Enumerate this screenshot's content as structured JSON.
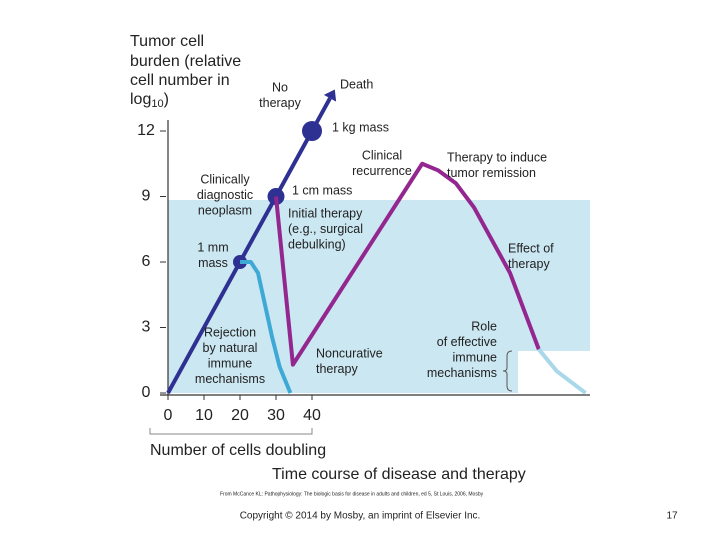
{
  "chart_data": {
    "type": "line",
    "y_label_lines": [
      "Tumor cell",
      "burden (relative",
      "cell number in",
      "log"
    ],
    "y_label_sub": "10",
    "y_label_end": ")",
    "x_label": "Number of cells doubling",
    "title": "Time course of disease and therapy",
    "xlim": [
      0,
      117
    ],
    "ylim": [
      0,
      12
    ],
    "xticks": [
      0,
      10,
      20,
      30,
      40
    ],
    "yticks": [
      0,
      3,
      6,
      9,
      12
    ],
    "series": [
      {
        "color": "#2e3192",
        "x": [
          0,
          20,
          30,
          40,
          45
        ],
        "values": [
          0,
          6,
          9,
          12,
          13.5
        ],
        "markers": [
          1,
          2,
          3
        ]
      },
      {
        "color": "#3fa9d6",
        "x": [
          20,
          23,
          25,
          27,
          29,
          31,
          34
        ],
        "values": [
          6,
          6,
          5.5,
          4,
          2.5,
          1.2,
          0
        ]
      },
      {
        "color": "#93278f",
        "x": [
          30,
          34.7,
          70.6,
          75,
          80,
          85,
          95,
          103
        ],
        "values": [
          9,
          1.3,
          10.5,
          10.2,
          9.6,
          8.5,
          5.5,
          2
        ]
      },
      {
        "color": "#a9d8ea",
        "x": [
          103,
          108,
          116
        ],
        "values": [
          2,
          1,
          0
        ]
      }
    ],
    "annotations": [
      {
        "lines": [
          "No",
          "therapy"
        ]
      },
      {
        "lines": [
          "Death"
        ]
      },
      {
        "lines": [
          "1 kg mass"
        ]
      },
      {
        "lines": [
          "Clinical",
          "recurrence"
        ]
      },
      {
        "lines": [
          "Therapy to induce",
          "tumor remission"
        ]
      },
      {
        "lines": [
          "Clinically",
          "diagnostic",
          "neoplasm"
        ]
      },
      {
        "lines": [
          "1 cm mass"
        ]
      },
      {
        "lines": [
          "Initial therapy",
          "(e.g., surgical",
          "debulking)"
        ]
      },
      {
        "lines": [
          "Effect of",
          "therapy"
        ]
      },
      {
        "lines": [
          "1 mm",
          "mass"
        ]
      },
      {
        "lines": [
          "Role",
          "of effective",
          "immune",
          "mechanisms"
        ]
      },
      {
        "lines": [
          "Rejection",
          "by natural",
          "immune",
          "mechanisms"
        ]
      },
      {
        "lines": [
          "Noncurative",
          "therapy"
        ]
      }
    ],
    "citation": "From McCance KL: Pathophysiology: The biologic basis for disease in adults and children, ed 5, St Louis, 2006, Mosby",
    "copyright": "Copyright © 2014 by Mosby, an imprint of Elsevier Inc.",
    "page_number": "17"
  }
}
